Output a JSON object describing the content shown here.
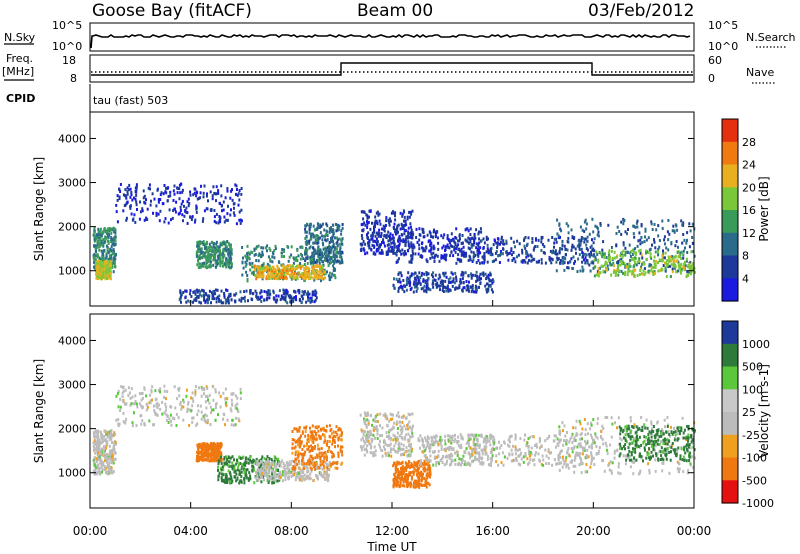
{
  "header": {
    "station": "Goose Bay (fitACF)",
    "beam": "Beam 00",
    "date": "03/Feb/2012"
  },
  "summary": {
    "nsky_label": "N.Sky",
    "nsky_ticks": [
      "10^5",
      "10^0"
    ],
    "nsearch_label": "N.Search",
    "freq_label": "Freq.",
    "freq_unit": "[MHz]",
    "freq_ticks": [
      "18",
      "8"
    ],
    "nave_label": "Nave",
    "nave_ticks": [
      "60",
      "0"
    ],
    "cpid_label": "CPID",
    "cpid_text": "tau (fast) 503"
  },
  "colors": {
    "power": [
      "#1a1ae0",
      "#1d3a9a",
      "#2a6a8a",
      "#3a9a5a",
      "#7ac83a",
      "#e8b020",
      "#f07a10",
      "#e53010"
    ],
    "velocity": [
      "#e51010",
      "#f07810",
      "#f0a020",
      "#bcbcbc",
      "#c8c8c8",
      "#5ac83a",
      "#2e7a3a",
      "#1d3a9a"
    ]
  },
  "chart_data": [
    {
      "type": "heatmap",
      "ylabel": "Slant Range [km]",
      "yticks": [
        1000,
        2000,
        3000,
        4000
      ],
      "ylim": [
        200,
        4600
      ],
      "xlim_hours": [
        0,
        24
      ],
      "colorbar": {
        "label": "Power [dB]",
        "ticks": [
          "4",
          "8",
          "12",
          "16",
          "20",
          "24",
          "28"
        ]
      },
      "regions": [
        {
          "t": [
            0.1,
            1.0
          ],
          "r": [
            1000,
            2000
          ],
          "v": 14
        },
        {
          "t": [
            0.2,
            0.8
          ],
          "r": [
            850,
            1250
          ],
          "v": 22
        },
        {
          "t": [
            1.0,
            6.0
          ],
          "r": [
            2100,
            3000
          ],
          "v": 6
        },
        {
          "t": [
            4.2,
            5.6
          ],
          "r": [
            1100,
            1700
          ],
          "v": 15
        },
        {
          "t": [
            6.0,
            9.8
          ],
          "r": [
            800,
            1600
          ],
          "v": 14
        },
        {
          "t": [
            6.5,
            9.3
          ],
          "r": [
            850,
            1150
          ],
          "v": 24
        },
        {
          "t": [
            8.5,
            10.0
          ],
          "r": [
            1200,
            2100
          ],
          "v": 12
        },
        {
          "t": [
            3.5,
            9.0
          ],
          "r": [
            300,
            600
          ],
          "v": 8
        },
        {
          "t": [
            10.7,
            12.8
          ],
          "r": [
            1400,
            2400
          ],
          "v": 7
        },
        {
          "t": [
            12.0,
            15.5
          ],
          "r": [
            1200,
            2000
          ],
          "v": 7
        },
        {
          "t": [
            15.0,
            20.0
          ],
          "r": [
            1200,
            1800
          ],
          "v": 8
        },
        {
          "t": [
            18.5,
            24.0
          ],
          "r": [
            1000,
            2200
          ],
          "v": 11
        },
        {
          "t": [
            20.0,
            24.0
          ],
          "r": [
            900,
            1500
          ],
          "v": 20
        },
        {
          "t": [
            12.0,
            16.0
          ],
          "r": [
            550,
            1000
          ],
          "v": 8
        }
      ]
    },
    {
      "type": "heatmap",
      "ylabel": "Slant Range [km]",
      "yticks": [
        1000,
        2000,
        3000,
        4000
      ],
      "ylim": [
        200,
        4600
      ],
      "xlim_hours": [
        0,
        24
      ],
      "xlabel": "Time UT",
      "xticks": [
        "00:00",
        "04:00",
        "08:00",
        "12:00",
        "16:00",
        "20:00",
        "00:00"
      ],
      "colorbar": {
        "label": "Velocity [m s-1]",
        "ticks": [
          "1000",
          "500",
          "100",
          "25",
          "-25",
          "-100",
          "-500",
          "-1000"
        ]
      },
      "regions": [
        {
          "t": [
            0.1,
            1.0
          ],
          "r": [
            1000,
            2000
          ],
          "v": 0
        },
        {
          "t": [
            1.0,
            6.0
          ],
          "r": [
            2100,
            3000
          ],
          "v": 0
        },
        {
          "t": [
            4.2,
            5.2
          ],
          "r": [
            1300,
            1700
          ],
          "v": -150
        },
        {
          "t": [
            5.0,
            7.5
          ],
          "r": [
            800,
            1400
          ],
          "v": 120
        },
        {
          "t": [
            6.5,
            9.5
          ],
          "r": [
            850,
            1300
          ],
          "v": 0
        },
        {
          "t": [
            8.0,
            10.0
          ],
          "r": [
            1100,
            2100
          ],
          "v": -120
        },
        {
          "t": [
            10.7,
            12.8
          ],
          "r": [
            1400,
            2400
          ],
          "v": 0
        },
        {
          "t": [
            12.0,
            13.5
          ],
          "r": [
            700,
            1300
          ],
          "v": -150
        },
        {
          "t": [
            13.0,
            16.0
          ],
          "r": [
            1200,
            1900
          ],
          "v": 0
        },
        {
          "t": [
            15.0,
            20.0
          ],
          "r": [
            1200,
            1900
          ],
          "v": 0
        },
        {
          "t": [
            18.5,
            24.0
          ],
          "r": [
            1000,
            2300
          ],
          "v": 0
        },
        {
          "t": [
            21.0,
            24.0
          ],
          "r": [
            1300,
            2100
          ],
          "v": 120
        }
      ]
    }
  ]
}
